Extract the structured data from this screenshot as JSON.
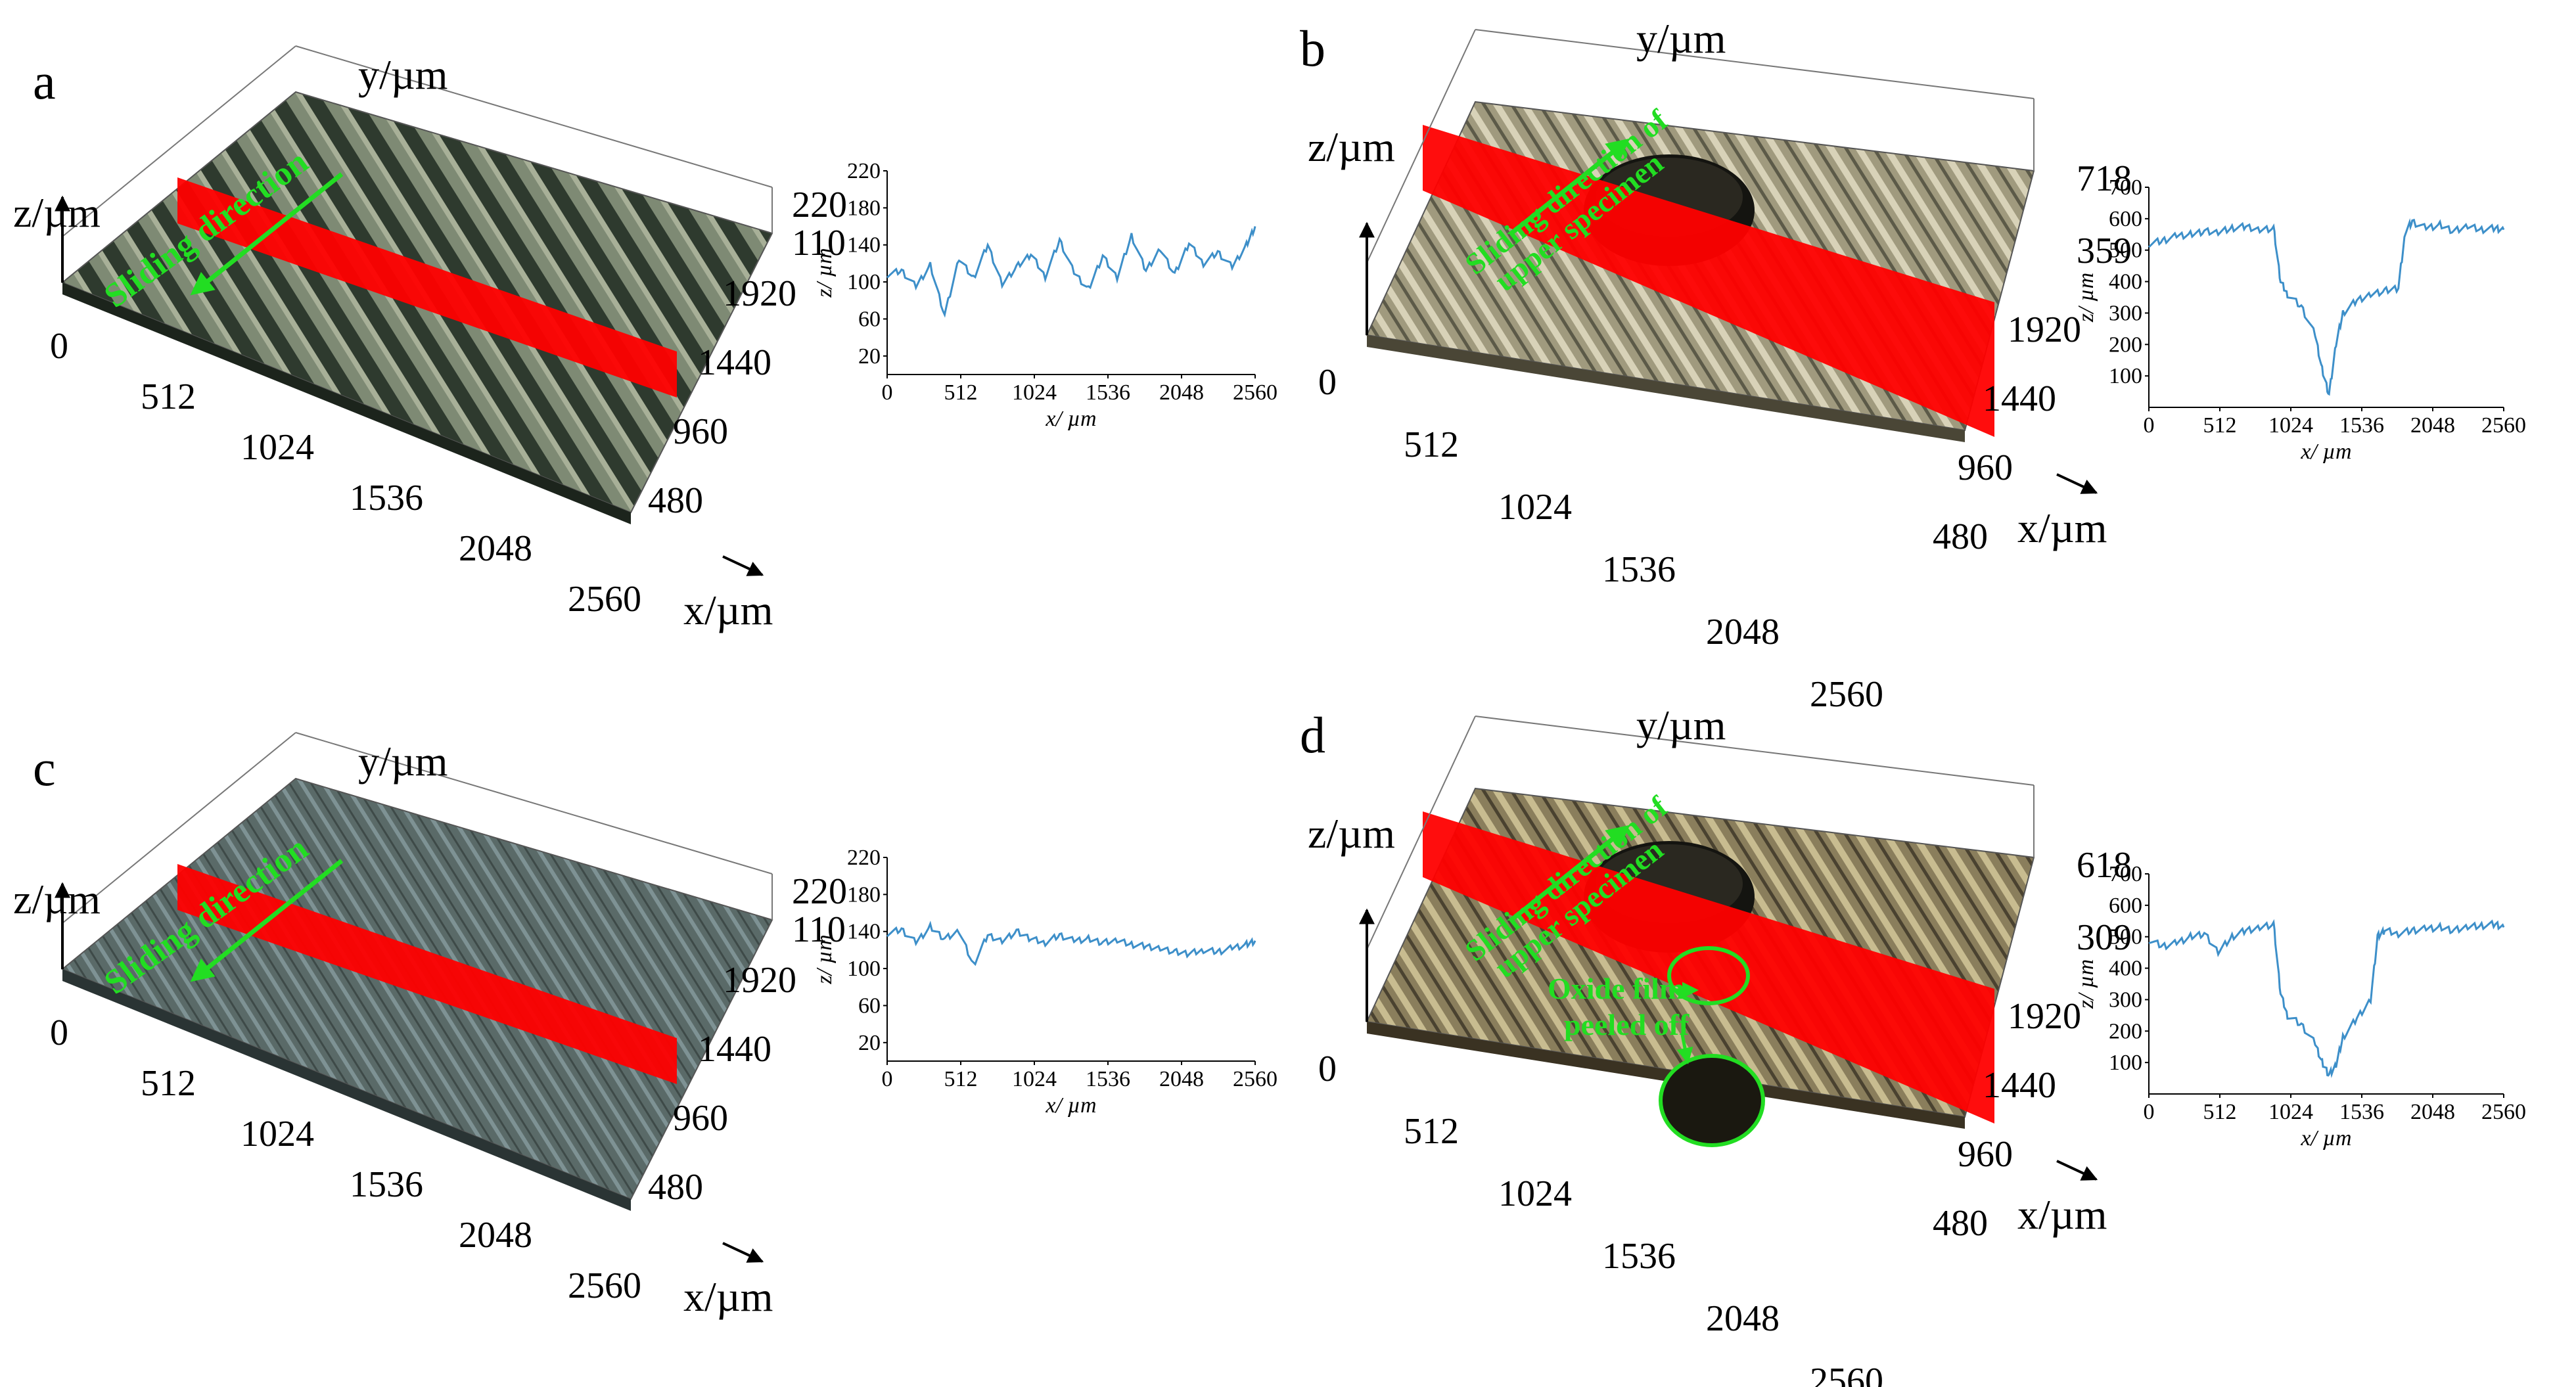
{
  "figure": {
    "axis_titles": {
      "x": "x/µm",
      "y": "y/µm",
      "z": "z/µm"
    },
    "x_ticks": [
      "0",
      "512",
      "1024",
      "1536",
      "2048",
      "2560"
    ],
    "y_ticks": [
      "480",
      "960",
      "1440",
      "1920"
    ],
    "colors": {
      "profile_line": "#3d8fc9",
      "cross_section": "#ff0000",
      "annotation": "#22dd22"
    }
  },
  "panels": [
    {
      "label": "a",
      "z_ticks": [
        "220",
        "110"
      ],
      "annotations": [
        "Sliding direction"
      ],
      "surface": "ribbed-dark"
    },
    {
      "label": "b",
      "z_ticks": [
        "718",
        "359"
      ],
      "annotations": [
        "Sliding direction of",
        "upper specimen"
      ],
      "surface": "worn-with-pit"
    },
    {
      "label": "c",
      "z_ticks": [
        "220",
        "110"
      ],
      "annotations": [
        "Sliding direction"
      ],
      "surface": "smooth-blue"
    },
    {
      "label": "d",
      "z_ticks": [
        "618",
        "309"
      ],
      "annotations": [
        "Sliding direction of",
        "upper specimen",
        "Oxide film",
        "peeled off"
      ],
      "surface": "worn-with-pit-oxide"
    }
  ],
  "chart_data": [
    {
      "type": "line",
      "panel": "a",
      "xlabel": "x/ µm",
      "ylabel": "z/ µm",
      "xlim": [
        0,
        2560
      ],
      "ylim": [
        0,
        220
      ],
      "x_ticks": [
        0,
        512,
        1024,
        1536,
        2048,
        2560
      ],
      "y_ticks": [
        20,
        60,
        100,
        140,
        180,
        220
      ],
      "x": [
        0,
        100,
        200,
        300,
        400,
        500,
        600,
        700,
        800,
        900,
        1000,
        1100,
        1200,
        1300,
        1400,
        1500,
        1600,
        1700,
        1800,
        1900,
        2000,
        2100,
        2200,
        2300,
        2400,
        2500,
        2560
      ],
      "values": [
        108,
        112,
        95,
        118,
        64,
        125,
        104,
        140,
        98,
        116,
        130,
        106,
        145,
        110,
        92,
        128,
        104,
        150,
        112,
        136,
        108,
        142,
        120,
        132,
        116,
        140,
        160
      ]
    },
    {
      "type": "line",
      "panel": "b",
      "xlabel": "x/ µm",
      "ylabel": "z/ µm",
      "xlim": [
        0,
        2560
      ],
      "ylim": [
        0,
        700
      ],
      "x_ticks": [
        0,
        512,
        1024,
        1536,
        2048,
        2560
      ],
      "y_ticks": [
        100,
        200,
        300,
        400,
        500,
        600,
        700
      ],
      "x": [
        0,
        100,
        200,
        300,
        400,
        500,
        600,
        700,
        800,
        900,
        950,
        1000,
        1100,
        1200,
        1250,
        1300,
        1350,
        1400,
        1500,
        1600,
        1700,
        1800,
        1850,
        1900,
        2000,
        2100,
        2200,
        2300,
        2400,
        2500,
        2560
      ],
      "values": [
        520,
        530,
        545,
        550,
        560,
        555,
        570,
        575,
        565,
        570,
        400,
        360,
        320,
        230,
        120,
        40,
        200,
        300,
        340,
        360,
        370,
        380,
        560,
        590,
        570,
        580,
        560,
        575,
        565,
        570,
        565
      ]
    },
    {
      "type": "line",
      "panel": "c",
      "xlabel": "x/ µm",
      "ylabel": "z/ µm",
      "xlim": [
        0,
        2560
      ],
      "ylim": [
        0,
        220
      ],
      "x_ticks": [
        0,
        512,
        1024,
        1536,
        2048,
        2560
      ],
      "y_ticks": [
        20,
        60,
        100,
        140,
        180,
        220
      ],
      "x": [
        0,
        100,
        200,
        300,
        400,
        500,
        600,
        700,
        800,
        900,
        1000,
        1100,
        1200,
        1300,
        1400,
        1500,
        1600,
        1700,
        1800,
        1900,
        2000,
        2100,
        2200,
        2300,
        2400,
        2500,
        2560
      ],
      "values": [
        138,
        142,
        128,
        145,
        132,
        140,
        104,
        136,
        130,
        140,
        132,
        128,
        136,
        130,
        132,
        128,
        130,
        126,
        124,
        122,
        118,
        116,
        120,
        118,
        122,
        126,
        130
      ]
    },
    {
      "type": "line",
      "panel": "d",
      "xlabel": "x/ µm",
      "ylabel": "z/ µm",
      "xlim": [
        0,
        2560
      ],
      "ylim": [
        0,
        700
      ],
      "x_ticks": [
        0,
        512,
        1024,
        1536,
        2048,
        2560
      ],
      "y_ticks": [
        100,
        200,
        300,
        400,
        500,
        600,
        700
      ],
      "x": [
        0,
        100,
        200,
        300,
        400,
        500,
        600,
        700,
        800,
        900,
        950,
        1000,
        1100,
        1200,
        1250,
        1300,
        1350,
        1400,
        1500,
        1600,
        1650,
        1700,
        1800,
        1900,
        2000,
        2100,
        2200,
        2300,
        2400,
        2500,
        2560
      ],
      "values": [
        490,
        470,
        480,
        500,
        510,
        450,
        500,
        520,
        530,
        540,
        320,
        250,
        220,
        160,
        100,
        60,
        90,
        180,
        240,
        300,
        500,
        520,
        510,
        520,
        525,
        530,
        520,
        530,
        535,
        540,
        530
      ]
    }
  ]
}
